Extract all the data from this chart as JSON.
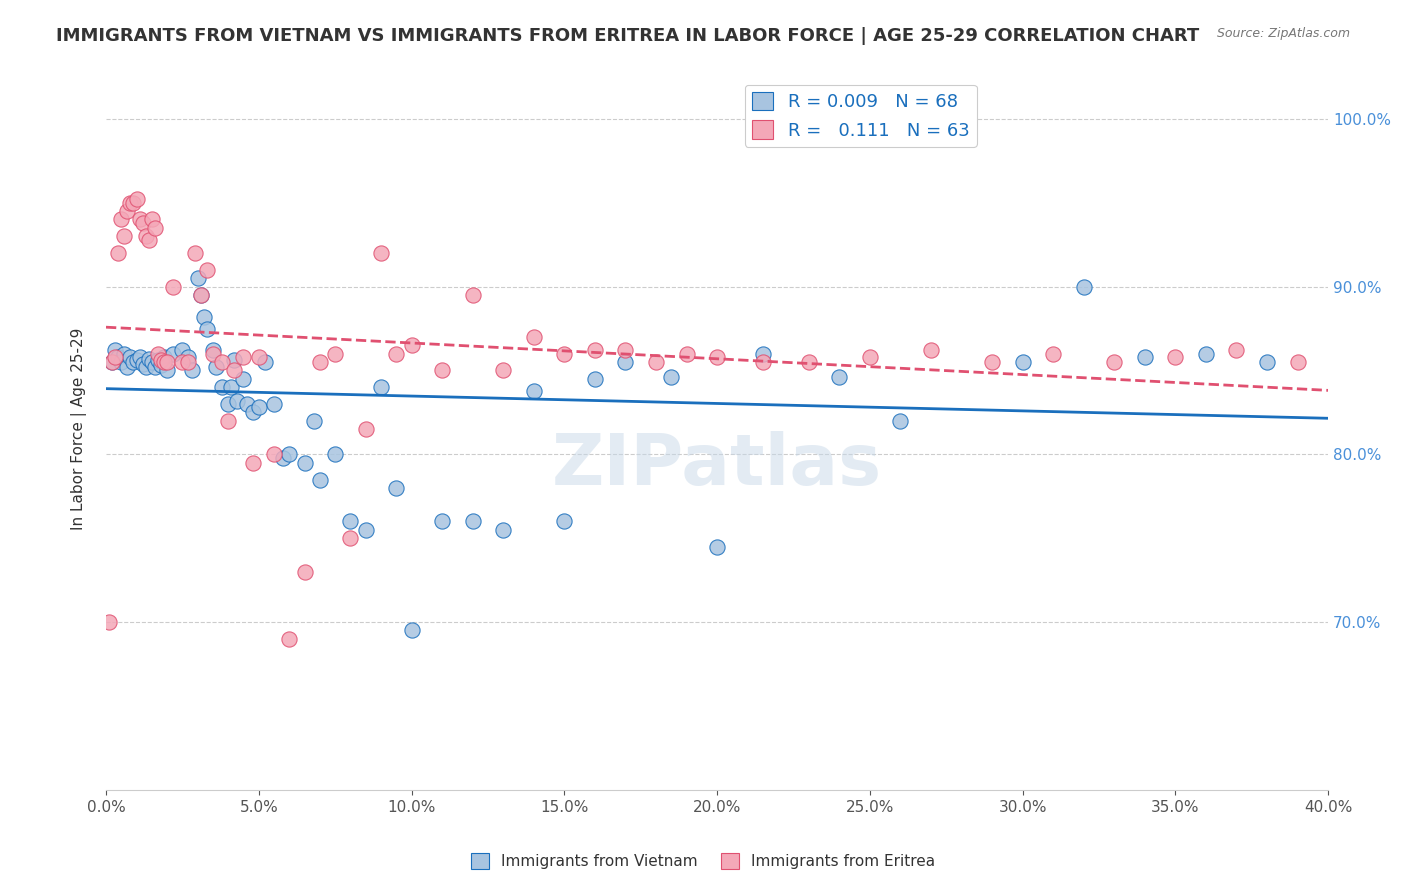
{
  "title": "IMMIGRANTS FROM VIETNAM VS IMMIGRANTS FROM ERITREA IN LABOR FORCE | AGE 25-29 CORRELATION CHART",
  "source": "Source: ZipAtlas.com",
  "ylabel": "In Labor Force | Age 25-29",
  "ylabel_right_vals": [
    1.0,
    0.9,
    0.8,
    0.7
  ],
  "xlim": [
    0.0,
    0.4
  ],
  "ylim": [
    0.6,
    1.03
  ],
  "legend_vietnam": "R = 0.009   N = 68",
  "legend_eritrea": "R =   0.111   N = 63",
  "color_vietnam": "#a8c4e0",
  "color_eritrea": "#f4a8b8",
  "trendline_vietnam_color": "#1a6fbd",
  "trendline_eritrea_color": "#e05070",
  "background_color": "#ffffff",
  "watermark": "ZIPatlas",
  "vietnam_x": [
    0.002,
    0.003,
    0.004,
    0.005,
    0.006,
    0.007,
    0.008,
    0.009,
    0.01,
    0.011,
    0.012,
    0.013,
    0.014,
    0.015,
    0.016,
    0.017,
    0.018,
    0.019,
    0.02,
    0.022,
    0.025,
    0.027,
    0.028,
    0.03,
    0.031,
    0.032,
    0.033,
    0.035,
    0.036,
    0.038,
    0.04,
    0.041,
    0.042,
    0.043,
    0.045,
    0.046,
    0.048,
    0.05,
    0.052,
    0.055,
    0.058,
    0.06,
    0.065,
    0.068,
    0.07,
    0.075,
    0.08,
    0.085,
    0.09,
    0.095,
    0.1,
    0.11,
    0.12,
    0.13,
    0.14,
    0.15,
    0.16,
    0.17,
    0.185,
    0.2,
    0.215,
    0.24,
    0.26,
    0.3,
    0.32,
    0.34,
    0.36,
    0.38
  ],
  "vietnam_y": [
    0.855,
    0.862,
    0.858,
    0.855,
    0.86,
    0.852,
    0.858,
    0.855,
    0.856,
    0.858,
    0.854,
    0.852,
    0.857,
    0.855,
    0.852,
    0.856,
    0.853,
    0.858,
    0.85,
    0.86,
    0.862,
    0.858,
    0.85,
    0.905,
    0.895,
    0.882,
    0.875,
    0.862,
    0.852,
    0.84,
    0.83,
    0.84,
    0.856,
    0.832,
    0.845,
    0.83,
    0.825,
    0.828,
    0.855,
    0.83,
    0.798,
    0.8,
    0.795,
    0.82,
    0.785,
    0.8,
    0.76,
    0.755,
    0.84,
    0.78,
    0.695,
    0.76,
    0.76,
    0.755,
    0.838,
    0.76,
    0.845,
    0.855,
    0.846,
    0.745,
    0.86,
    0.846,
    0.82,
    0.855,
    0.9,
    0.858,
    0.86,
    0.855
  ],
  "eritrea_x": [
    0.001,
    0.002,
    0.003,
    0.004,
    0.005,
    0.006,
    0.007,
    0.008,
    0.009,
    0.01,
    0.011,
    0.012,
    0.013,
    0.014,
    0.015,
    0.016,
    0.017,
    0.018,
    0.019,
    0.02,
    0.022,
    0.025,
    0.027,
    0.029,
    0.031,
    0.033,
    0.035,
    0.038,
    0.04,
    0.042,
    0.045,
    0.048,
    0.05,
    0.055,
    0.06,
    0.065,
    0.07,
    0.075,
    0.08,
    0.085,
    0.09,
    0.095,
    0.1,
    0.11,
    0.12,
    0.13,
    0.14,
    0.15,
    0.16,
    0.17,
    0.18,
    0.19,
    0.2,
    0.215,
    0.23,
    0.25,
    0.27,
    0.29,
    0.31,
    0.33,
    0.35,
    0.37,
    0.39
  ],
  "eritrea_y": [
    0.7,
    0.855,
    0.858,
    0.92,
    0.94,
    0.93,
    0.945,
    0.95,
    0.95,
    0.952,
    0.94,
    0.938,
    0.93,
    0.928,
    0.94,
    0.935,
    0.86,
    0.856,
    0.855,
    0.855,
    0.9,
    0.855,
    0.855,
    0.92,
    0.895,
    0.91,
    0.86,
    0.855,
    0.82,
    0.85,
    0.858,
    0.795,
    0.858,
    0.8,
    0.69,
    0.73,
    0.855,
    0.86,
    0.75,
    0.815,
    0.92,
    0.86,
    0.865,
    0.85,
    0.895,
    0.85,
    0.87,
    0.86,
    0.862,
    0.862,
    0.855,
    0.86,
    0.858,
    0.855,
    0.855,
    0.858,
    0.862,
    0.855,
    0.86,
    0.855,
    0.858,
    0.862,
    0.855
  ]
}
